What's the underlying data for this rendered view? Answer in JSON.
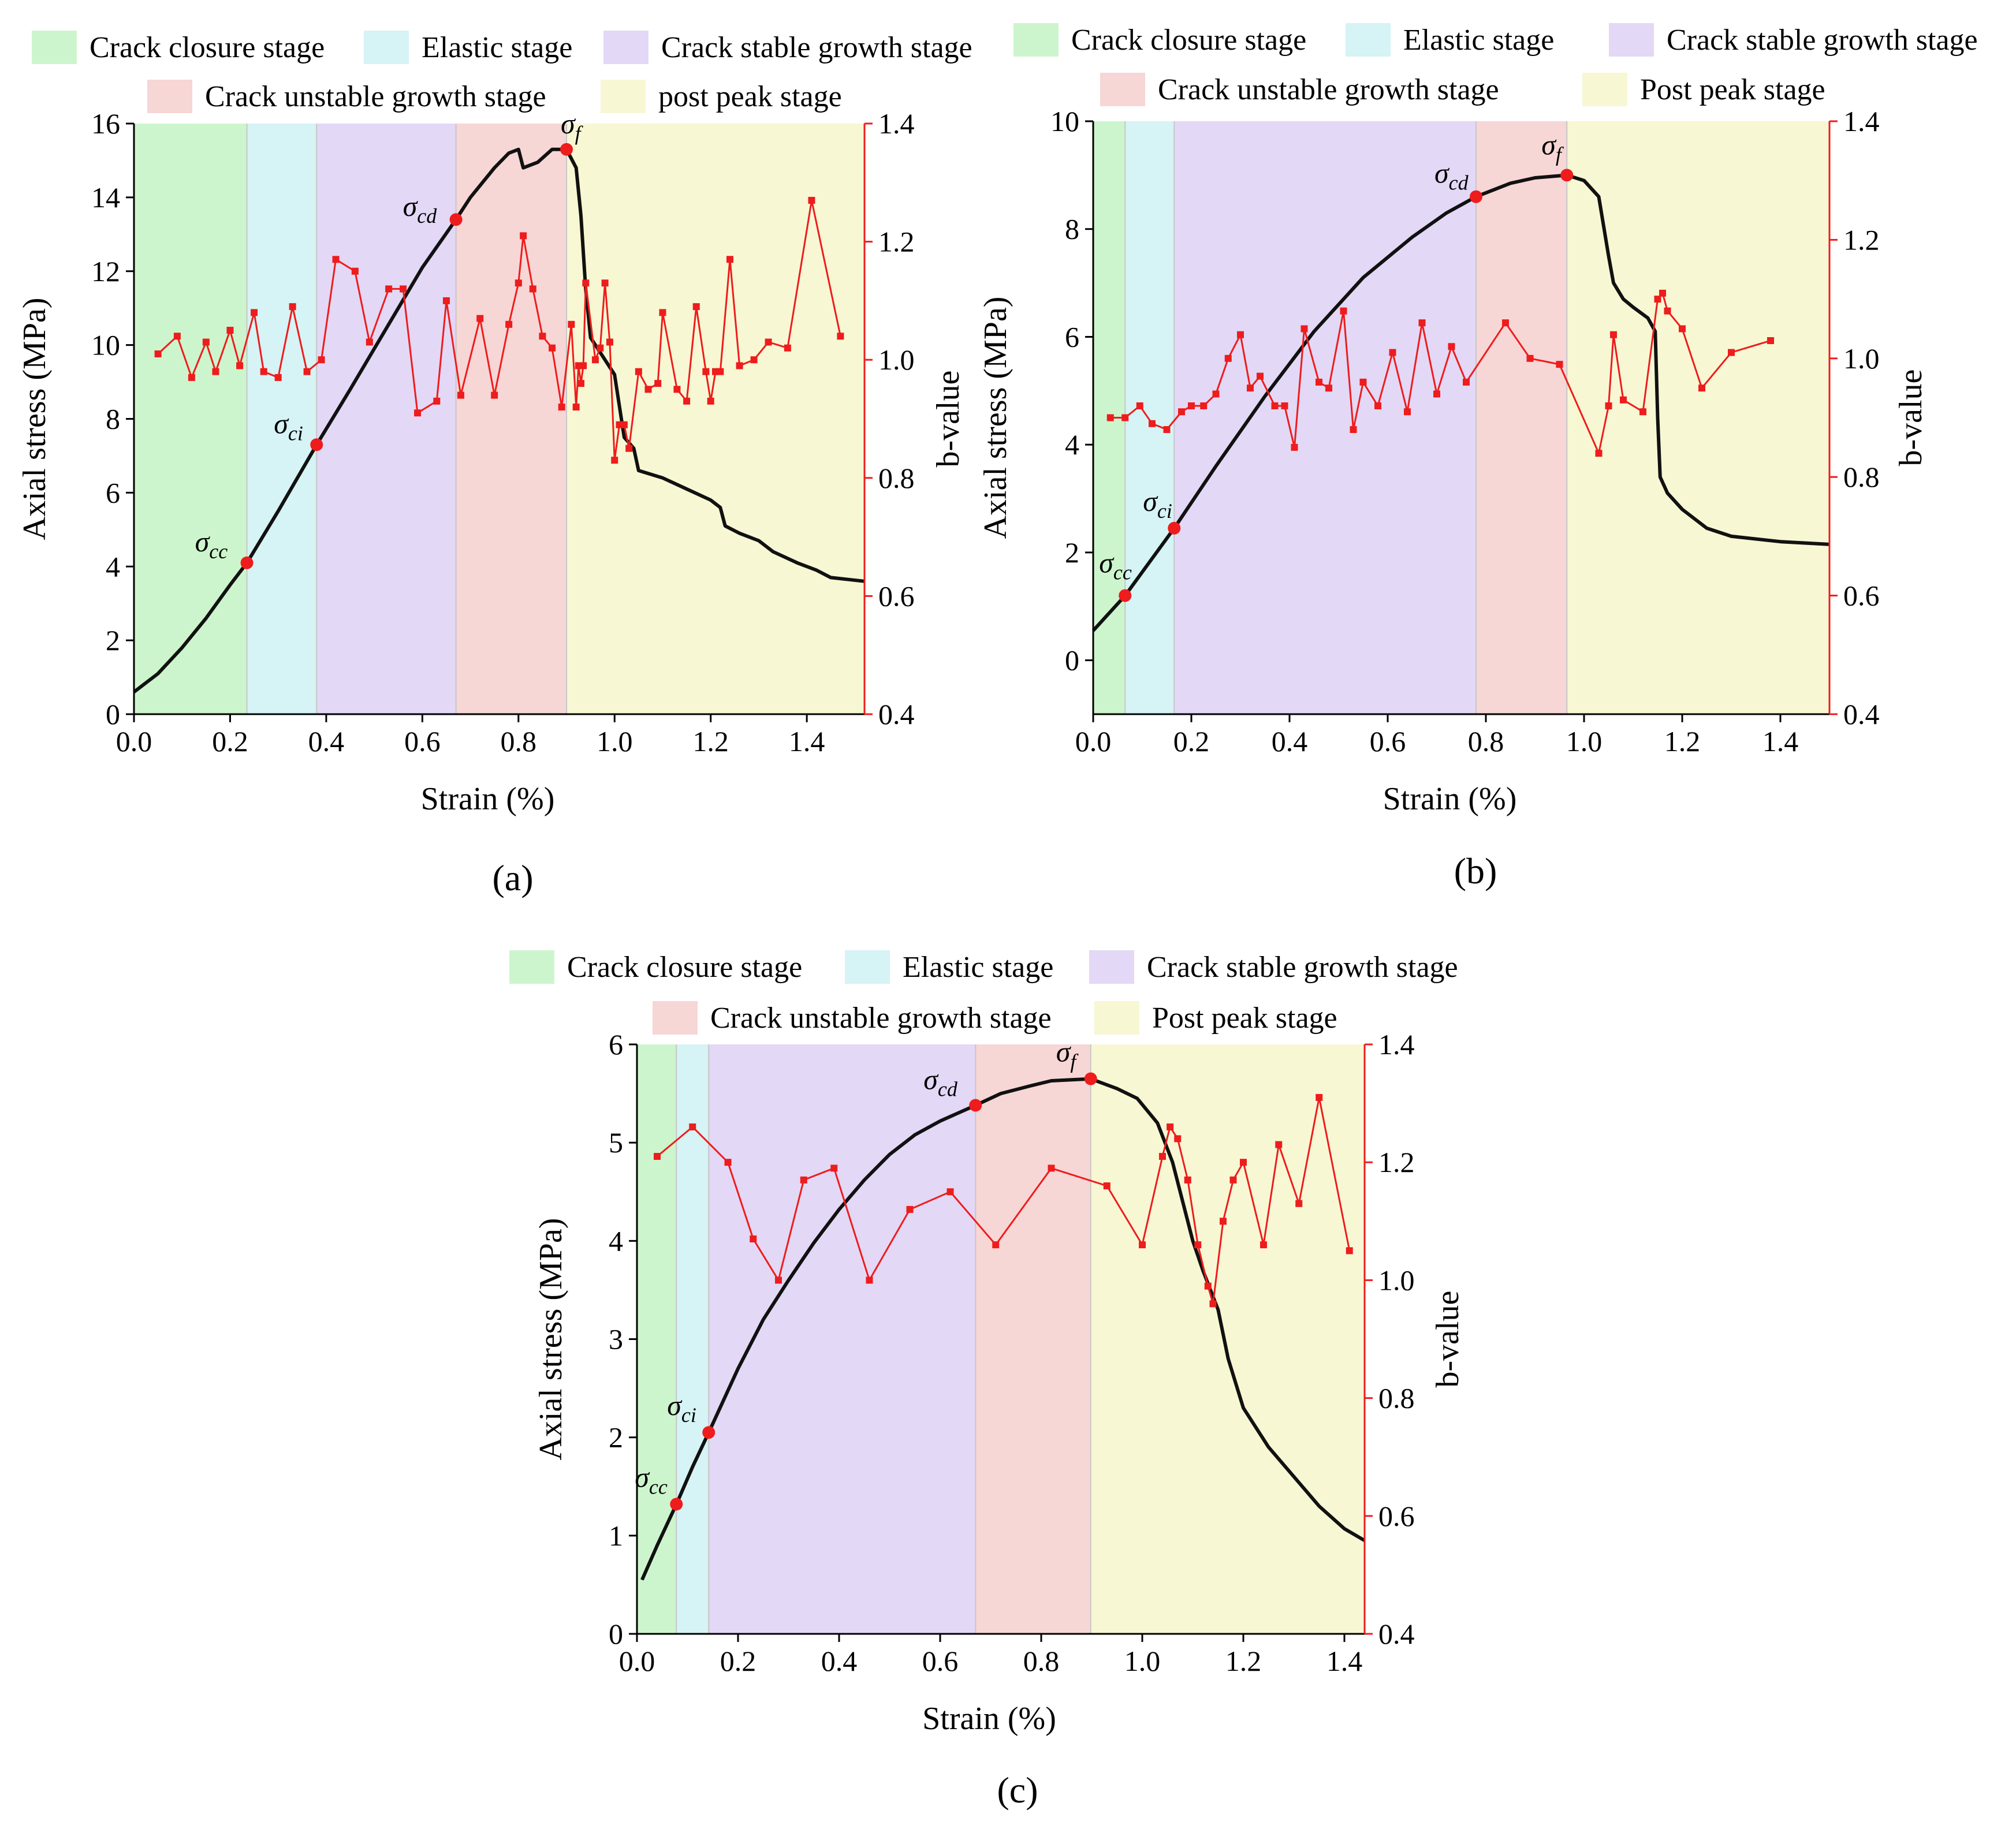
{
  "colors": {
    "closure": "#cdf5cd",
    "elastic": "#d6f3f5",
    "stable": "#e3d8f6",
    "unstable": "#f7d6d6",
    "postpeak": "#f7f7d4",
    "stress_line": "#111111",
    "bvalue": "#ee1c1c",
    "axis": "#000000",
    "axis_right": "#ee1c1c"
  },
  "chart_data": [
    {
      "type": "line",
      "caption": "(a)",
      "xlabel": "Strain (%)",
      "ylabel": "Axial stress (MPa)",
      "y2label": "b-value",
      "xlim": [
        0,
        1.52
      ],
      "ylim": [
        0,
        16
      ],
      "y2lim": [
        0.4,
        1.4
      ],
      "xticks": [
        "0.0",
        "0.2",
        "0.4",
        "0.6",
        "0.8",
        "1.0",
        "1.2",
        "1.4"
      ],
      "xtick_values": [
        0,
        0.2,
        0.4,
        0.6,
        0.8,
        1.0,
        1.2,
        1.4
      ],
      "yticks": [
        "0",
        "2",
        "4",
        "6",
        "8",
        "10",
        "12",
        "14",
        "16"
      ],
      "ytick_values": [
        0,
        2,
        4,
        6,
        8,
        10,
        12,
        14,
        16
      ],
      "y2ticks": [
        "0.4",
        "0.6",
        "0.8",
        "1.0",
        "1.2",
        "1.4"
      ],
      "y2tick_values": [
        0.4,
        0.6,
        0.8,
        1.0,
        1.2,
        1.4
      ],
      "legend_row1": [
        "Crack closure stage",
        "Elastic stage",
        "Crack stable growth stage"
      ],
      "legend_row2": [
        "Crack unstable growth stage",
        "post peak stage"
      ],
      "stages": [
        {
          "name": "Crack closure stage",
          "from": 0,
          "to": 0.235
        },
        {
          "name": "Elastic stage",
          "from": 0.235,
          "to": 0.38
        },
        {
          "name": "Crack stable growth stage",
          "from": 0.38,
          "to": 0.67
        },
        {
          "name": "Crack unstable growth stage",
          "from": 0.67,
          "to": 0.9
        },
        {
          "name": "post peak stage",
          "from": 0.9,
          "to": 1.52
        }
      ],
      "stress_curve": [
        [
          0,
          0.6
        ],
        [
          0.05,
          1.1
        ],
        [
          0.1,
          1.8
        ],
        [
          0.15,
          2.6
        ],
        [
          0.2,
          3.5
        ],
        [
          0.235,
          4.1
        ],
        [
          0.3,
          5.5
        ],
        [
          0.38,
          7.3
        ],
        [
          0.45,
          8.8
        ],
        [
          0.5,
          9.9
        ],
        [
          0.55,
          11.0
        ],
        [
          0.6,
          12.1
        ],
        [
          0.67,
          13.4
        ],
        [
          0.7,
          14.0
        ],
        [
          0.75,
          14.8
        ],
        [
          0.78,
          15.2
        ],
        [
          0.8,
          15.3
        ],
        [
          0.81,
          14.8
        ],
        [
          0.84,
          14.95
        ],
        [
          0.87,
          15.3
        ],
        [
          0.9,
          15.3
        ],
        [
          0.92,
          14.8
        ],
        [
          0.93,
          13.5
        ],
        [
          0.94,
          11.5
        ],
        [
          0.95,
          10.2
        ],
        [
          0.97,
          9.8
        ],
        [
          1.0,
          9.2
        ],
        [
          1.02,
          7.5
        ],
        [
          1.04,
          7.2
        ],
        [
          1.05,
          6.6
        ],
        [
          1.1,
          6.4
        ],
        [
          1.15,
          6.1
        ],
        [
          1.2,
          5.8
        ],
        [
          1.22,
          5.6
        ],
        [
          1.23,
          5.1
        ],
        [
          1.26,
          4.9
        ],
        [
          1.3,
          4.7
        ],
        [
          1.33,
          4.4
        ],
        [
          1.38,
          4.1
        ],
        [
          1.42,
          3.9
        ],
        [
          1.45,
          3.7
        ],
        [
          1.52,
          3.6
        ]
      ],
      "key_points": [
        {
          "label": "σ",
          "sub": "cc",
          "x": 0.235,
          "y": 4.1
        },
        {
          "label": "σ",
          "sub": "ci",
          "x": 0.38,
          "y": 7.3
        },
        {
          "label": "σ",
          "sub": "cd",
          "x": 0.67,
          "y": 13.4
        },
        {
          "label": "σ",
          "sub": "f",
          "x": 0.9,
          "y": 15.3
        }
      ],
      "bvalue": [
        [
          0.05,
          1.01
        ],
        [
          0.09,
          1.04
        ],
        [
          0.12,
          0.97
        ],
        [
          0.15,
          1.03
        ],
        [
          0.17,
          0.98
        ],
        [
          0.2,
          1.05
        ],
        [
          0.22,
          0.99
        ],
        [
          0.25,
          1.08
        ],
        [
          0.27,
          0.98
        ],
        [
          0.3,
          0.97
        ],
        [
          0.33,
          1.09
        ],
        [
          0.36,
          0.98
        ],
        [
          0.39,
          1.0
        ],
        [
          0.42,
          1.17
        ],
        [
          0.46,
          1.15
        ],
        [
          0.49,
          1.03
        ],
        [
          0.53,
          1.12
        ],
        [
          0.56,
          1.12
        ],
        [
          0.59,
          0.91
        ],
        [
          0.63,
          0.93
        ],
        [
          0.65,
          1.1
        ],
        [
          0.68,
          0.94
        ],
        [
          0.72,
          1.07
        ],
        [
          0.75,
          0.94
        ],
        [
          0.78,
          1.06
        ],
        [
          0.8,
          1.13
        ],
        [
          0.81,
          1.21
        ],
        [
          0.83,
          1.12
        ],
        [
          0.85,
          1.04
        ],
        [
          0.87,
          1.02
        ],
        [
          0.89,
          0.92
        ],
        [
          0.91,
          1.06
        ],
        [
          0.92,
          0.92
        ],
        [
          0.925,
          0.99
        ],
        [
          0.93,
          0.96
        ],
        [
          0.935,
          0.99
        ],
        [
          0.94,
          1.13
        ],
        [
          0.96,
          1.0
        ],
        [
          0.97,
          1.02
        ],
        [
          0.98,
          1.13
        ],
        [
          0.99,
          1.03
        ],
        [
          1.0,
          0.83
        ],
        [
          1.01,
          0.89
        ],
        [
          1.02,
          0.89
        ],
        [
          1.03,
          0.85
        ],
        [
          1.05,
          0.98
        ],
        [
          1.07,
          0.95
        ],
        [
          1.09,
          0.96
        ],
        [
          1.1,
          1.08
        ],
        [
          1.13,
          0.95
        ],
        [
          1.15,
          0.93
        ],
        [
          1.17,
          1.09
        ],
        [
          1.19,
          0.98
        ],
        [
          1.2,
          0.93
        ],
        [
          1.21,
          0.98
        ],
        [
          1.22,
          0.98
        ],
        [
          1.24,
          1.17
        ],
        [
          1.26,
          0.99
        ],
        [
          1.29,
          1.0
        ],
        [
          1.32,
          1.03
        ],
        [
          1.36,
          1.02
        ],
        [
          1.41,
          1.27
        ],
        [
          1.47,
          1.04
        ]
      ]
    },
    {
      "type": "line",
      "caption": "(b)",
      "xlabel": "Strain (%)",
      "ylabel": "Axial stress (MPa)",
      "y2label": "b-value",
      "xlim": [
        0,
        1.5
      ],
      "ylim": [
        -1,
        10
      ],
      "y2lim": [
        0.4,
        1.4
      ],
      "xticks": [
        "0.0",
        "0.2",
        "0.4",
        "0.6",
        "0.8",
        "1.0",
        "1.2",
        "1.4"
      ],
      "xtick_values": [
        0,
        0.2,
        0.4,
        0.6,
        0.8,
        1.0,
        1.2,
        1.4
      ],
      "yticks": [
        "0",
        "2",
        "4",
        "6",
        "8",
        "10"
      ],
      "ytick_values": [
        0,
        2,
        4,
        6,
        8,
        10
      ],
      "y2ticks": [
        "0.4",
        "0.6",
        "0.8",
        "1.0",
        "1.2",
        "1.4"
      ],
      "y2tick_values": [
        0.4,
        0.6,
        0.8,
        1.0,
        1.2,
        1.4
      ],
      "legend_row1": [
        "Crack closure stage",
        "Elastic stage",
        "Crack stable growth stage"
      ],
      "legend_row2": [
        "Crack unstable growth stage",
        "Post peak stage"
      ],
      "stages": [
        {
          "name": "Crack closure stage",
          "from": 0,
          "to": 0.065
        },
        {
          "name": "Elastic stage",
          "from": 0.065,
          "to": 0.165
        },
        {
          "name": "Crack stable growth stage",
          "from": 0.165,
          "to": 0.78
        },
        {
          "name": "Crack unstable growth stage",
          "from": 0.78,
          "to": 0.965
        },
        {
          "name": "Post peak stage",
          "from": 0.965,
          "to": 1.5
        }
      ],
      "stress_curve": [
        [
          0,
          0.55
        ],
        [
          0.065,
          1.2
        ],
        [
          0.165,
          2.45
        ],
        [
          0.25,
          3.6
        ],
        [
          0.35,
          4.9
        ],
        [
          0.45,
          6.1
        ],
        [
          0.55,
          7.1
        ],
        [
          0.65,
          7.85
        ],
        [
          0.72,
          8.3
        ],
        [
          0.78,
          8.6
        ],
        [
          0.85,
          8.85
        ],
        [
          0.9,
          8.95
        ],
        [
          0.965,
          9.0
        ],
        [
          1.0,
          8.9
        ],
        [
          1.03,
          8.6
        ],
        [
          1.05,
          7.5
        ],
        [
          1.06,
          7.0
        ],
        [
          1.08,
          6.7
        ],
        [
          1.1,
          6.55
        ],
        [
          1.13,
          6.35
        ],
        [
          1.145,
          6.1
        ],
        [
          1.15,
          4.5
        ],
        [
          1.155,
          3.4
        ],
        [
          1.17,
          3.1
        ],
        [
          1.2,
          2.8
        ],
        [
          1.25,
          2.45
        ],
        [
          1.3,
          2.3
        ],
        [
          1.4,
          2.2
        ],
        [
          1.5,
          2.15
        ]
      ],
      "key_points": [
        {
          "label": "σ",
          "sub": "cc",
          "x": 0.065,
          "y": 1.2
        },
        {
          "label": "σ",
          "sub": "ci",
          "x": 0.165,
          "y": 2.45
        },
        {
          "label": "σ",
          "sub": "cd",
          "x": 0.78,
          "y": 8.6
        },
        {
          "label": "σ",
          "sub": "f",
          "x": 0.965,
          "y": 9.0
        }
      ],
      "bvalue": [
        [
          0.035,
          0.9
        ],
        [
          0.065,
          0.9
        ],
        [
          0.095,
          0.92
        ],
        [
          0.12,
          0.89
        ],
        [
          0.15,
          0.88
        ],
        [
          0.18,
          0.91
        ],
        [
          0.2,
          0.92
        ],
        [
          0.225,
          0.92
        ],
        [
          0.25,
          0.94
        ],
        [
          0.275,
          1.0
        ],
        [
          0.3,
          1.04
        ],
        [
          0.32,
          0.95
        ],
        [
          0.34,
          0.97
        ],
        [
          0.37,
          0.92
        ],
        [
          0.39,
          0.92
        ],
        [
          0.41,
          0.85
        ],
        [
          0.43,
          1.05
        ],
        [
          0.46,
          0.96
        ],
        [
          0.48,
          0.95
        ],
        [
          0.51,
          1.08
        ],
        [
          0.53,
          0.88
        ],
        [
          0.55,
          0.96
        ],
        [
          0.58,
          0.92
        ],
        [
          0.61,
          1.01
        ],
        [
          0.64,
          0.91
        ],
        [
          0.67,
          1.06
        ],
        [
          0.7,
          0.94
        ],
        [
          0.73,
          1.02
        ],
        [
          0.76,
          0.96
        ],
        [
          0.84,
          1.06
        ],
        [
          0.89,
          1.0
        ],
        [
          0.95,
          0.99
        ],
        [
          1.03,
          0.84
        ],
        [
          1.05,
          0.92
        ],
        [
          1.06,
          1.04
        ],
        [
          1.08,
          0.93
        ],
        [
          1.12,
          0.91
        ],
        [
          1.15,
          1.1
        ],
        [
          1.16,
          1.11
        ],
        [
          1.17,
          1.08
        ],
        [
          1.2,
          1.05
        ],
        [
          1.24,
          0.95
        ],
        [
          1.3,
          1.01
        ],
        [
          1.38,
          1.03
        ]
      ]
    },
    {
      "type": "line",
      "caption": "(c)",
      "xlabel": "Strain (%)",
      "ylabel": "Axial stress (MPa)",
      "y2label": "b-value",
      "xlim": [
        0,
        1.44
      ],
      "ylim": [
        0,
        6
      ],
      "y2lim": [
        0.4,
        1.4
      ],
      "xticks": [
        "0.0",
        "0.2",
        "0.4",
        "0.6",
        "0.8",
        "1.0",
        "1.2",
        "1.4"
      ],
      "xtick_values": [
        0,
        0.2,
        0.4,
        0.6,
        0.8,
        1.0,
        1.2,
        1.4
      ],
      "yticks": [
        "0",
        "1",
        "2",
        "3",
        "4",
        "5",
        "6"
      ],
      "ytick_values": [
        0,
        1,
        2,
        3,
        4,
        5,
        6
      ],
      "y2ticks": [
        "0.4",
        "0.6",
        "0.8",
        "1.0",
        "1.2",
        "1.4"
      ],
      "y2tick_values": [
        0.4,
        0.6,
        0.8,
        1.0,
        1.2,
        1.4
      ],
      "legend_row1": [
        "Crack closure stage",
        "Elastic stage",
        "Crack stable growth stage"
      ],
      "legend_row2": [
        "Crack unstable growth stage",
        "Post peak stage"
      ],
      "stages": [
        {
          "name": "Crack closure stage",
          "from": 0,
          "to": 0.078
        },
        {
          "name": "Elastic stage",
          "from": 0.078,
          "to": 0.142
        },
        {
          "name": "Crack stable growth stage",
          "from": 0.142,
          "to": 0.67
        },
        {
          "name": "Crack unstable growth stage",
          "from": 0.67,
          "to": 0.898
        },
        {
          "name": "Post peak stage",
          "from": 0.898,
          "to": 1.44
        }
      ],
      "stress_curve": [
        [
          0.01,
          0.55
        ],
        [
          0.04,
          0.9
        ],
        [
          0.078,
          1.32
        ],
        [
          0.11,
          1.7
        ],
        [
          0.142,
          2.05
        ],
        [
          0.2,
          2.7
        ],
        [
          0.25,
          3.2
        ],
        [
          0.3,
          3.6
        ],
        [
          0.35,
          3.98
        ],
        [
          0.4,
          4.32
        ],
        [
          0.45,
          4.62
        ],
        [
          0.5,
          4.88
        ],
        [
          0.55,
          5.08
        ],
        [
          0.6,
          5.22
        ],
        [
          0.67,
          5.38
        ],
        [
          0.72,
          5.5
        ],
        [
          0.78,
          5.58
        ],
        [
          0.82,
          5.63
        ],
        [
          0.898,
          5.65
        ],
        [
          0.95,
          5.55
        ],
        [
          0.99,
          5.45
        ],
        [
          1.03,
          5.2
        ],
        [
          1.06,
          4.8
        ],
        [
          1.08,
          4.4
        ],
        [
          1.1,
          4.0
        ],
        [
          1.12,
          3.7
        ],
        [
          1.15,
          3.3
        ],
        [
          1.17,
          2.8
        ],
        [
          1.2,
          2.3
        ],
        [
          1.25,
          1.9
        ],
        [
          1.3,
          1.6
        ],
        [
          1.35,
          1.3
        ],
        [
          1.4,
          1.07
        ],
        [
          1.44,
          0.95
        ]
      ],
      "key_points": [
        {
          "label": "σ",
          "sub": "cc",
          "x": 0.078,
          "y": 1.32
        },
        {
          "label": "σ",
          "sub": "ci",
          "x": 0.142,
          "y": 2.05
        },
        {
          "label": "σ",
          "sub": "cd",
          "x": 0.67,
          "y": 5.38
        },
        {
          "label": "σ",
          "sub": "f",
          "x": 0.898,
          "y": 5.65
        }
      ],
      "bvalue": [
        [
          0.04,
          1.21
        ],
        [
          0.11,
          1.26
        ],
        [
          0.18,
          1.2
        ],
        [
          0.23,
          1.07
        ],
        [
          0.28,
          1.0
        ],
        [
          0.33,
          1.17
        ],
        [
          0.39,
          1.19
        ],
        [
          0.46,
          1.0
        ],
        [
          0.54,
          1.12
        ],
        [
          0.62,
          1.15
        ],
        [
          0.71,
          1.06
        ],
        [
          0.82,
          1.19
        ],
        [
          0.93,
          1.16
        ],
        [
          1.0,
          1.06
        ],
        [
          1.04,
          1.21
        ],
        [
          1.055,
          1.26
        ],
        [
          1.07,
          1.24
        ],
        [
          1.09,
          1.17
        ],
        [
          1.11,
          1.06
        ],
        [
          1.13,
          0.99
        ],
        [
          1.14,
          0.96
        ],
        [
          1.16,
          1.1
        ],
        [
          1.18,
          1.17
        ],
        [
          1.2,
          1.2
        ],
        [
          1.24,
          1.06
        ],
        [
          1.27,
          1.23
        ],
        [
          1.31,
          1.13
        ],
        [
          1.35,
          1.31
        ],
        [
          1.41,
          1.05
        ]
      ]
    }
  ]
}
